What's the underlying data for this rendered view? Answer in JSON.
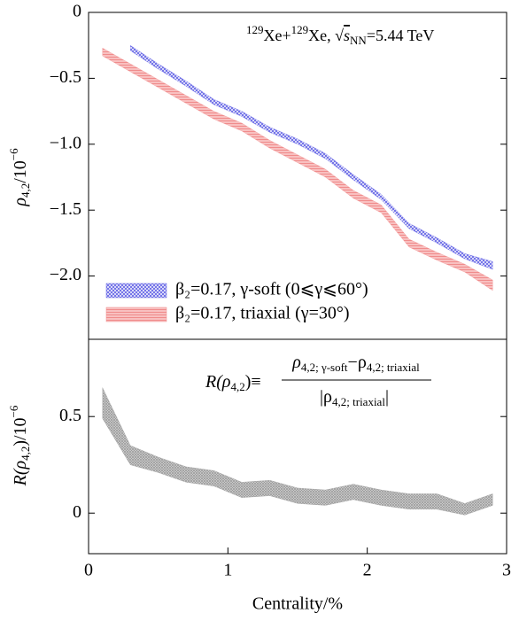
{
  "chart_data": [
    {
      "type": "band",
      "annotation": [
        "129",
        "Xe+",
        "129",
        "Xe,  √",
        "s",
        "NN",
        "=5.44 TeV"
      ],
      "ylabel": [
        "ρ",
        "4,2",
        "/10",
        "−6"
      ],
      "x": [
        0.1,
        0.3,
        0.5,
        0.7,
        0.9,
        1.1,
        1.3,
        1.5,
        1.7,
        1.9,
        2.1,
        2.3,
        2.5,
        2.7,
        2.9
      ],
      "series": [
        {
          "name": "β₂=0.17, γ-soft (0⩽γ⩽60°)",
          "color": "#6a6ae6",
          "values": [
            null,
            -0.27,
            -0.41,
            -0.54,
            -0.68,
            -0.77,
            -0.89,
            -0.98,
            -1.09,
            -1.25,
            -1.4,
            -1.62,
            -1.73,
            -1.85,
            -1.92
          ],
          "errors": [
            null,
            0.02,
            0.02,
            0.02,
            0.02,
            0.02,
            0.02,
            0.02,
            0.02,
            0.02,
            0.02,
            0.02,
            0.02,
            0.02,
            0.03
          ]
        },
        {
          "name": "β₂=0.17, triaxial (γ=30°)",
          "color": "#f08c8c",
          "values": [
            -0.3,
            -0.42,
            -0.54,
            -0.66,
            -0.78,
            -0.87,
            -1.0,
            -1.11,
            -1.22,
            -1.38,
            -1.49,
            -1.75,
            -1.85,
            -1.94,
            -2.07
          ],
          "errors": [
            0.03,
            0.03,
            0.03,
            0.03,
            0.03,
            0.03,
            0.03,
            0.03,
            0.03,
            0.03,
            0.03,
            0.03,
            0.03,
            0.03,
            0.04
          ]
        }
      ],
      "xlim": [
        0,
        3
      ],
      "ylim": [
        -2.48,
        0
      ],
      "yticks": [
        0,
        {
          "value": -0.5,
          "label": "−0.5"
        },
        {
          "value": -1.0,
          "label": "−1.0"
        },
        {
          "value": -1.5,
          "label": "−1.5"
        },
        {
          "value": -2.0,
          "label": "−2.0"
        }
      ],
      "legend": "lower left"
    },
    {
      "type": "band",
      "annotation": [
        "R(ρ",
        "4,2",
        ")≡"
      ],
      "numerator": [
        "ρ",
        "4,2; γ-soft",
        "−ρ",
        "4,2; triaxial"
      ],
      "denominator": [
        "|ρ",
        "4,2; triaxial",
        "|"
      ],
      "ylabel": [
        "R(ρ",
        "4,2",
        ")/10",
        "−6"
      ],
      "xlabel": "Centrality/%",
      "x": [
        0.1,
        0.3,
        0.5,
        0.7,
        0.9,
        1.1,
        1.3,
        1.5,
        1.7,
        1.9,
        2.1,
        2.3,
        2.5,
        2.7,
        2.9
      ],
      "series": [
        {
          "color": "#9a9a9a",
          "values": [
            0.57,
            0.3,
            0.25,
            0.2,
            0.18,
            0.12,
            0.13,
            0.09,
            0.08,
            0.11,
            0.08,
            0.06,
            0.06,
            0.02,
            0.07
          ],
          "errors": [
            0.08,
            0.05,
            0.04,
            0.04,
            0.04,
            0.04,
            0.04,
            0.04,
            0.04,
            0.04,
            0.04,
            0.04,
            0.04,
            0.03,
            0.03
          ]
        }
      ],
      "xlim": [
        0,
        3
      ],
      "ylim": [
        -0.21,
        0.9
      ],
      "xticks": [
        0,
        1,
        2,
        3
      ],
      "yticks": [
        0,
        0.5
      ]
    }
  ]
}
